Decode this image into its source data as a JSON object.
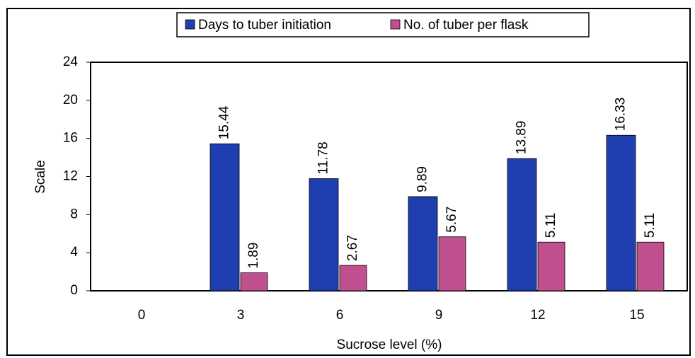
{
  "chart_data": {
    "type": "bar",
    "categories": [
      "0",
      "3",
      "6",
      "9",
      "12",
      "15"
    ],
    "series": [
      {
        "name": "Days to tuber initiation",
        "color": "#1f3fb0",
        "values": [
          null,
          15.44,
          11.78,
          9.89,
          13.89,
          16.33
        ]
      },
      {
        "name": "No. of tuber per flask",
        "color": "#c0508f",
        "values": [
          null,
          1.89,
          2.67,
          5.67,
          5.11,
          5.11
        ]
      }
    ],
    "x_label": "Sucrose level (%)",
    "y_label": "Scale",
    "ylim": [
      0,
      24
    ],
    "yticks": [
      0,
      4,
      8,
      12,
      16,
      20,
      24
    ],
    "legend": "top"
  }
}
